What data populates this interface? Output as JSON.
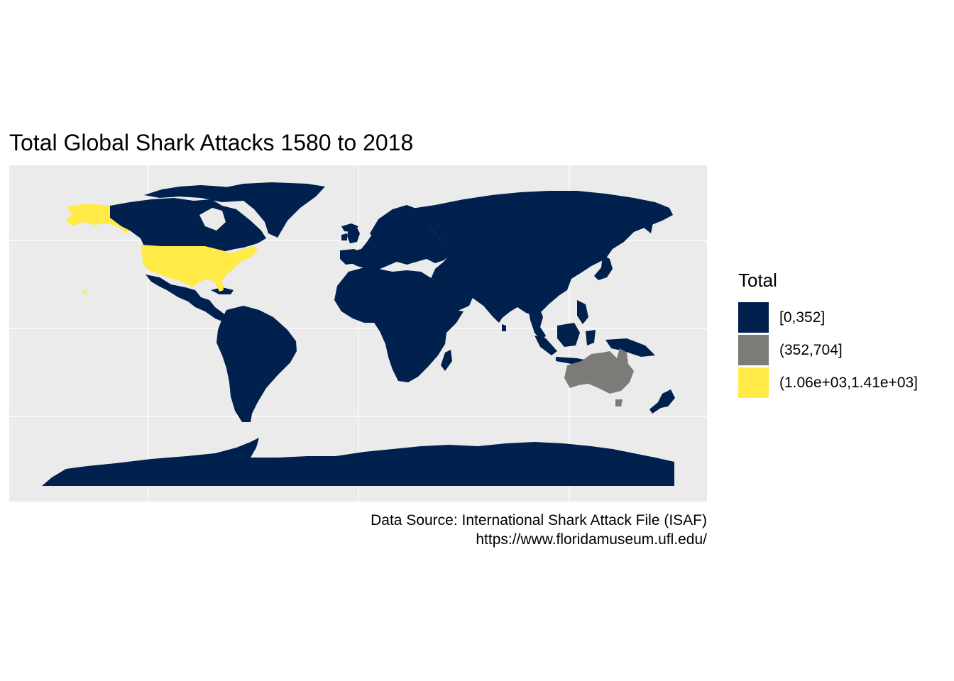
{
  "map": {
    "title": "Total Global Shark Attacks 1580 to 2018",
    "caption_line1": "Data Source: International Shark Attack File (ISAF)",
    "caption_line2": "https://www.floridamuseum.ufl.edu/",
    "legend": {
      "title": "Total",
      "items": [
        {
          "label": "[0,352]",
          "color": "#00204D"
        },
        {
          "label": "(352,704]",
          "color": "#7C7B78"
        },
        {
          "label": "(1.06e+03,1.41e+03]",
          "color": "#FFEA46"
        }
      ]
    },
    "colors": {
      "panel_background": "#ebebeb",
      "gridline": "#ffffff",
      "ocean": "#ebebeb"
    },
    "highlighted_regions": [
      {
        "region": "United States",
        "class": "(1.06e+03,1.41e+03]"
      },
      {
        "region": "Australia",
        "class": "(352,704]"
      }
    ]
  }
}
